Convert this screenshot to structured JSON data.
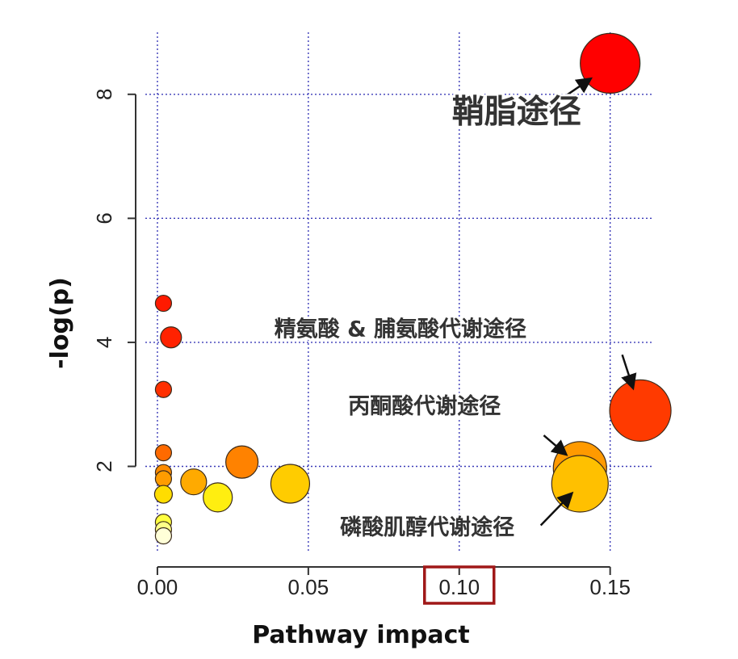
{
  "chart_data": {
    "type": "scatter",
    "xlabel": "Pathway impact",
    "ylabel": "-log(p)",
    "xlim": [
      -0.004,
      0.164
    ],
    "ylim": [
      0.6,
      9.0
    ],
    "x_ticks": [
      {
        "value": 0.0,
        "label": "0.00"
      },
      {
        "value": 0.05,
        "label": "0.05"
      },
      {
        "value": 0.1,
        "label": "0.10"
      },
      {
        "value": 0.15,
        "label": "0.15"
      }
    ],
    "y_ticks": [
      {
        "value": 2,
        "label": "2"
      },
      {
        "value": 4,
        "label": "4"
      },
      {
        "value": 6,
        "label": "6"
      },
      {
        "value": 8,
        "label": "8"
      }
    ],
    "highlighted_x_tick": "0.10",
    "highlight_color": "#a01818",
    "grid": true,
    "grid_color": "#3a3ab8",
    "points": [
      {
        "x": 0.15,
        "y": 8.5,
        "size": 37,
        "color": "#ff0000"
      },
      {
        "x": 0.16,
        "y": 2.9,
        "size": 38,
        "color": "#ff3a00"
      },
      {
        "x": 0.14,
        "y": 1.97,
        "size": 33,
        "color": "#ff9a00"
      },
      {
        "x": 0.14,
        "y": 1.72,
        "size": 35,
        "color": "#ffc000"
      },
      {
        "x": 0.044,
        "y": 1.72,
        "size": 24,
        "color": "#ffcc00"
      },
      {
        "x": 0.028,
        "y": 2.07,
        "size": 20,
        "color": "#ff8200"
      },
      {
        "x": 0.02,
        "y": 1.5,
        "size": 18,
        "color": "#ffee10"
      },
      {
        "x": 0.012,
        "y": 1.75,
        "size": 16,
        "color": "#ffaa00"
      },
      {
        "x": 0.0045,
        "y": 4.08,
        "size": 13,
        "color": "#ff2200"
      },
      {
        "x": 0.002,
        "y": 4.63,
        "size": 10,
        "color": "#ff1a00"
      },
      {
        "x": 0.002,
        "y": 3.24,
        "size": 10,
        "color": "#ff3000"
      },
      {
        "x": 0.002,
        "y": 2.22,
        "size": 10,
        "color": "#ff6a00"
      },
      {
        "x": 0.002,
        "y": 1.9,
        "size": 10,
        "color": "#ff8c00"
      },
      {
        "x": 0.002,
        "y": 1.8,
        "size": 10,
        "color": "#ff9c00"
      },
      {
        "x": 0.002,
        "y": 1.55,
        "size": 11,
        "color": "#ffdd00"
      },
      {
        "x": 0.002,
        "y": 1.1,
        "size": 10,
        "color": "#ffff40"
      },
      {
        "x": 0.002,
        "y": 0.98,
        "size": 10,
        "color": "#ffff88"
      },
      {
        "x": 0.002,
        "y": 0.88,
        "size": 10,
        "color": "#ffffd8"
      }
    ],
    "annotations": [
      {
        "text": "鞘脂途径",
        "x": 0.119,
        "y": 7.55,
        "size": 40,
        "arrow_from": [
          0.13,
          7.8
        ],
        "arrow_to": [
          0.142,
          8.2
        ]
      },
      {
        "text": "精氨酸 & 脯氨酸代谢途径",
        "x": 0.0805,
        "y": 4.1,
        "size": 27,
        "arrow_from": [
          0.154,
          3.8
        ],
        "arrow_to": [
          0.157,
          3.35
        ]
      },
      {
        "text": "丙酮酸代谢途径",
        "x": 0.0885,
        "y": 2.85,
        "size": 27,
        "arrow_from": [
          0.128,
          2.5
        ],
        "arrow_to": [
          0.134,
          2.25
        ]
      },
      {
        "text": "磷酸肌醇代谢途径",
        "x": 0.0894,
        "y": 0.9,
        "size": 27,
        "arrow_from": [
          0.127,
          1.05
        ],
        "arrow_to": [
          0.136,
          1.5
        ]
      }
    ]
  }
}
